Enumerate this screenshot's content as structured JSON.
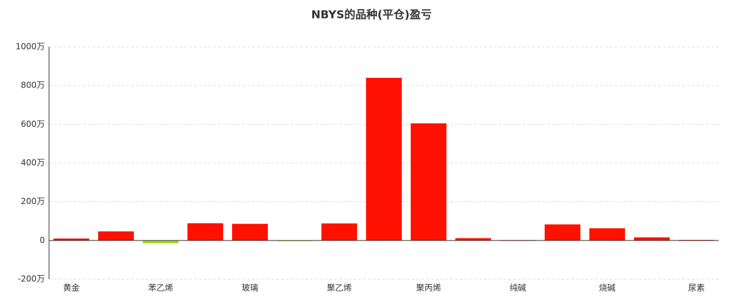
{
  "chart_data": {
    "type": "bar",
    "title": "NBYS的品种(平仓)盈亏",
    "categories": [
      "黄金",
      null,
      "苯乙烯",
      null,
      "玻璃",
      null,
      "聚乙烯",
      null,
      "聚丙烯",
      null,
      "纯碱",
      null,
      "烧碱",
      null,
      "尿素"
    ],
    "values": [
      10,
      47,
      -15,
      89,
      86,
      -3,
      88,
      840,
      605,
      12,
      2,
      83,
      63,
      16,
      3
    ],
    "colors": [
      "#ff1100",
      "#ff1100",
      "#a6d61f",
      "#ff1100",
      "#ff1100",
      "#a6d61f",
      "#ff1100",
      "#ff1100",
      "#ff1100",
      "#ff1100",
      "#ff1100",
      "#ff1100",
      "#ff1100",
      "#ff1100",
      "#ff1100"
    ],
    "ylim": [
      -200,
      1000
    ],
    "yticks": [
      {
        "value": -200,
        "label": "-200万"
      },
      {
        "value": 0,
        "label": "0"
      },
      {
        "value": 200,
        "label": "200万"
      },
      {
        "value": 400,
        "label": "400万"
      },
      {
        "value": 600,
        "label": "600万"
      },
      {
        "value": 800,
        "label": "800万"
      },
      {
        "value": 1000,
        "label": "1000万"
      }
    ],
    "grid": true
  }
}
